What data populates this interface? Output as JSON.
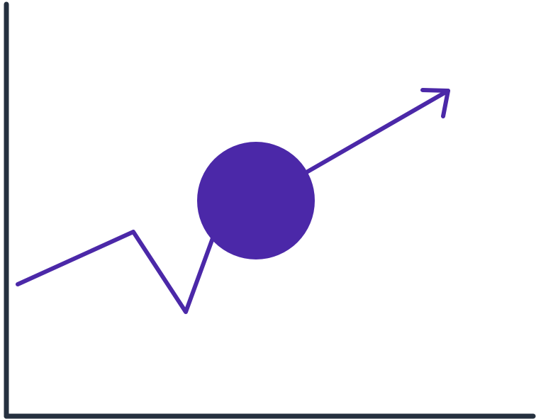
{
  "illustration": {
    "type": "trend-line-icon",
    "colors": {
      "axis": "#25303f",
      "trend_line": "#4b28a8",
      "marker": "#4b28a8",
      "background": "#ffffff"
    },
    "trend_points": [
      {
        "step": 1,
        "level": "medium"
      },
      {
        "step": 2,
        "level": "higher"
      },
      {
        "step": 3,
        "level": "dip"
      },
      {
        "step": 4,
        "level": "marker"
      },
      {
        "step": 5,
        "level": "peak"
      }
    ],
    "has_arrowhead": true,
    "has_marker": true
  }
}
